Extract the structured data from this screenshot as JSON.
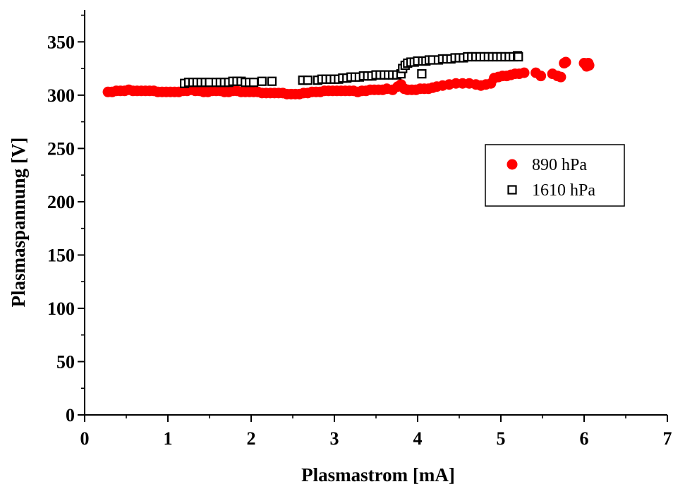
{
  "chart_data": {
    "type": "scatter",
    "title": "",
    "xlabel": "Plasmastrom [mA]",
    "ylabel": "Plasmaspannung [V]",
    "xlim": [
      0,
      7
    ],
    "ylim": [
      0,
      380
    ],
    "x_ticks": [
      0,
      1,
      2,
      3,
      4,
      5,
      6,
      7
    ],
    "x_tick_labels": [
      "0",
      "1",
      "2",
      "3",
      "4",
      "5",
      "6",
      "7"
    ],
    "y_ticks": [
      0,
      50,
      100,
      150,
      200,
      250,
      300,
      350
    ],
    "y_tick_labels": [
      "0",
      "50",
      "100",
      "150",
      "200",
      "250",
      "300",
      "350"
    ],
    "grid": false,
    "legend_position": "right",
    "series": [
      {
        "name": "890 hPa",
        "marker": "filled-circle",
        "color": "#ff0000",
        "points": [
          [
            0.28,
            303
          ],
          [
            0.33,
            303
          ],
          [
            0.38,
            304
          ],
          [
            0.43,
            304
          ],
          [
            0.48,
            304
          ],
          [
            0.53,
            305
          ],
          [
            0.58,
            304
          ],
          [
            0.63,
            304
          ],
          [
            0.68,
            304
          ],
          [
            0.73,
            304
          ],
          [
            0.78,
            304
          ],
          [
            0.83,
            304
          ],
          [
            0.88,
            303
          ],
          [
            0.93,
            303
          ],
          [
            0.98,
            303
          ],
          [
            1.03,
            303
          ],
          [
            1.08,
            303
          ],
          [
            1.13,
            303
          ],
          [
            1.18,
            304
          ],
          [
            1.23,
            304
          ],
          [
            1.28,
            305
          ],
          [
            1.33,
            304
          ],
          [
            1.38,
            304
          ],
          [
            1.43,
            303
          ],
          [
            1.48,
            303
          ],
          [
            1.53,
            304
          ],
          [
            1.58,
            304
          ],
          [
            1.63,
            304
          ],
          [
            1.68,
            303
          ],
          [
            1.73,
            303
          ],
          [
            1.78,
            304
          ],
          [
            1.83,
            304
          ],
          [
            1.88,
            303
          ],
          [
            1.93,
            303
          ],
          [
            1.98,
            303
          ],
          [
            2.03,
            303
          ],
          [
            2.08,
            303
          ],
          [
            2.13,
            302
          ],
          [
            2.18,
            302
          ],
          [
            2.23,
            302
          ],
          [
            2.28,
            302
          ],
          [
            2.33,
            302
          ],
          [
            2.38,
            302
          ],
          [
            2.43,
            301
          ],
          [
            2.48,
            301
          ],
          [
            2.53,
            301
          ],
          [
            2.58,
            301
          ],
          [
            2.63,
            302
          ],
          [
            2.68,
            302
          ],
          [
            2.73,
            303
          ],
          [
            2.78,
            303
          ],
          [
            2.83,
            303
          ],
          [
            2.88,
            304
          ],
          [
            2.93,
            304
          ],
          [
            2.98,
            304
          ],
          [
            3.03,
            304
          ],
          [
            3.08,
            304
          ],
          [
            3.13,
            304
          ],
          [
            3.18,
            304
          ],
          [
            3.23,
            304
          ],
          [
            3.28,
            303
          ],
          [
            3.33,
            304
          ],
          [
            3.38,
            304
          ],
          [
            3.43,
            305
          ],
          [
            3.48,
            305
          ],
          [
            3.53,
            305
          ],
          [
            3.58,
            305
          ],
          [
            3.63,
            306
          ],
          [
            3.7,
            305
          ],
          [
            3.76,
            308
          ],
          [
            3.8,
            310
          ],
          [
            3.84,
            306
          ],
          [
            3.88,
            305
          ],
          [
            3.93,
            305
          ],
          [
            3.98,
            305
          ],
          [
            4.03,
            306
          ],
          [
            4.08,
            306
          ],
          [
            4.13,
            306
          ],
          [
            4.18,
            307
          ],
          [
            4.23,
            308
          ],
          [
            4.3,
            309
          ],
          [
            4.38,
            310
          ],
          [
            4.46,
            311
          ],
          [
            4.54,
            311
          ],
          [
            4.62,
            311
          ],
          [
            4.7,
            310
          ],
          [
            4.76,
            309
          ],
          [
            4.82,
            310
          ],
          [
            4.88,
            311
          ],
          [
            4.92,
            316
          ],
          [
            4.97,
            317
          ],
          [
            5.02,
            318
          ],
          [
            5.07,
            318
          ],
          [
            5.12,
            319
          ],
          [
            5.17,
            320
          ],
          [
            5.22,
            320
          ],
          [
            5.28,
            321
          ],
          [
            5.42,
            321
          ],
          [
            5.48,
            318
          ],
          [
            5.62,
            320
          ],
          [
            5.68,
            318
          ],
          [
            5.72,
            317
          ],
          [
            5.76,
            330
          ],
          [
            5.78,
            331
          ],
          [
            6.0,
            330
          ],
          [
            6.03,
            327
          ],
          [
            6.05,
            330
          ],
          [
            6.06,
            328
          ]
        ]
      },
      {
        "name": "1610 hPa",
        "marker": "open-square",
        "color": "#000000",
        "points": [
          [
            1.2,
            311
          ],
          [
            1.25,
            312
          ],
          [
            1.3,
            312
          ],
          [
            1.35,
            312
          ],
          [
            1.4,
            312
          ],
          [
            1.45,
            312
          ],
          [
            1.5,
            312
          ],
          [
            1.58,
            312
          ],
          [
            1.63,
            312
          ],
          [
            1.68,
            312
          ],
          [
            1.73,
            312
          ],
          [
            1.78,
            313
          ],
          [
            1.83,
            313
          ],
          [
            1.88,
            313
          ],
          [
            1.93,
            312
          ],
          [
            1.98,
            312
          ],
          [
            2.03,
            312
          ],
          [
            2.13,
            313
          ],
          [
            2.25,
            313
          ],
          [
            2.62,
            314
          ],
          [
            2.68,
            314
          ],
          [
            2.8,
            314
          ],
          [
            2.85,
            315
          ],
          [
            2.9,
            315
          ],
          [
            2.95,
            315
          ],
          [
            3.0,
            315
          ],
          [
            3.05,
            315
          ],
          [
            3.1,
            316
          ],
          [
            3.15,
            316
          ],
          [
            3.2,
            317
          ],
          [
            3.25,
            317
          ],
          [
            3.3,
            317
          ],
          [
            3.35,
            318
          ],
          [
            3.4,
            318
          ],
          [
            3.45,
            318
          ],
          [
            3.5,
            319
          ],
          [
            3.55,
            319
          ],
          [
            3.6,
            319
          ],
          [
            3.65,
            319
          ],
          [
            3.7,
            319
          ],
          [
            3.75,
            319
          ],
          [
            3.8,
            320
          ],
          [
            3.82,
            325
          ],
          [
            3.85,
            328
          ],
          [
            3.88,
            330
          ],
          [
            3.92,
            331
          ],
          [
            3.96,
            331
          ],
          [
            4.0,
            332
          ],
          [
            4.05,
            320
          ],
          [
            4.06,
            332
          ],
          [
            4.1,
            332
          ],
          [
            4.14,
            333
          ],
          [
            4.18,
            333
          ],
          [
            4.25,
            333
          ],
          [
            4.3,
            334
          ],
          [
            4.35,
            334
          ],
          [
            4.4,
            334
          ],
          [
            4.45,
            335
          ],
          [
            4.5,
            335
          ],
          [
            4.55,
            335
          ],
          [
            4.6,
            336
          ],
          [
            4.65,
            336
          ],
          [
            4.7,
            336
          ],
          [
            4.75,
            336
          ],
          [
            4.8,
            336
          ],
          [
            4.85,
            336
          ],
          [
            4.9,
            336
          ],
          [
            4.95,
            336
          ],
          [
            5.0,
            336
          ],
          [
            5.05,
            336
          ],
          [
            5.1,
            336
          ],
          [
            5.15,
            336
          ],
          [
            5.2,
            337
          ],
          [
            5.21,
            336
          ]
        ]
      }
    ]
  }
}
